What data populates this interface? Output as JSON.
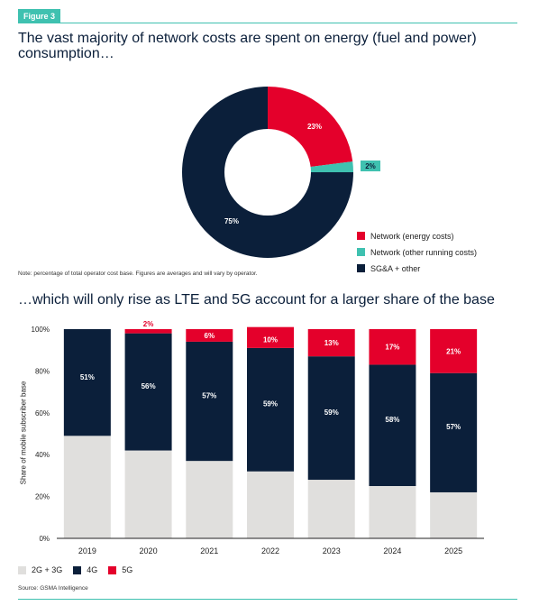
{
  "figure_label": "Figure 3",
  "title_top": "The vast majority of network costs are spent on energy (fuel and power) consumption…",
  "note": "Note: percentage of total operator cost base. Figures are averages and will vary by operator.",
  "title_bottom": "…which will only rise as LTE and 5G account for a larger share of the base",
  "source": "Source: GSMA Intelligence",
  "colors": {
    "red": "#e4002b",
    "teal": "#3fc1b0",
    "navy": "#0b1f3a",
    "grey": "#e0dfdd"
  },
  "chart_data": [
    {
      "type": "pie",
      "donut": true,
      "slices": [
        {
          "label": "Network (energy costs)",
          "value": 23,
          "display": "23%",
          "color": "#e4002b"
        },
        {
          "label": "Network (other running costs)",
          "value": 2,
          "display": "2%",
          "color": "#3fc1b0"
        },
        {
          "label": "SG&A + other",
          "value": 75,
          "display": "75%",
          "color": "#0b1f3a"
        }
      ],
      "legend_position": "bottom-right"
    },
    {
      "type": "bar",
      "stacked": true,
      "categories": [
        "2019",
        "2020",
        "2021",
        "2022",
        "2023",
        "2024",
        "2025"
      ],
      "series": [
        {
          "name": "2G + 3G",
          "values": [
            49,
            42,
            37,
            32,
            28,
            25,
            22
          ],
          "color": "#e0dfdd"
        },
        {
          "name": "4G",
          "values": [
            51,
            56,
            57,
            59,
            59,
            58,
            57
          ],
          "labels": [
            "51%",
            "56%",
            "57%",
            "59%",
            "59%",
            "58%",
            "57%"
          ],
          "color": "#0b1f3a"
        },
        {
          "name": "5G",
          "values": [
            0,
            2,
            6,
            10,
            13,
            17,
            21
          ],
          "labels": [
            "",
            "2%",
            "6%",
            "10%",
            "13%",
            "17%",
            "21%"
          ],
          "color": "#e4002b"
        }
      ],
      "ylabel": "Share of mobile subscriber base",
      "yticks": [
        "0%",
        "20%",
        "40%",
        "60%",
        "80%",
        "100%"
      ],
      "ylim": [
        0,
        100
      ],
      "grid": false,
      "legend_position": "bottom-left"
    }
  ]
}
